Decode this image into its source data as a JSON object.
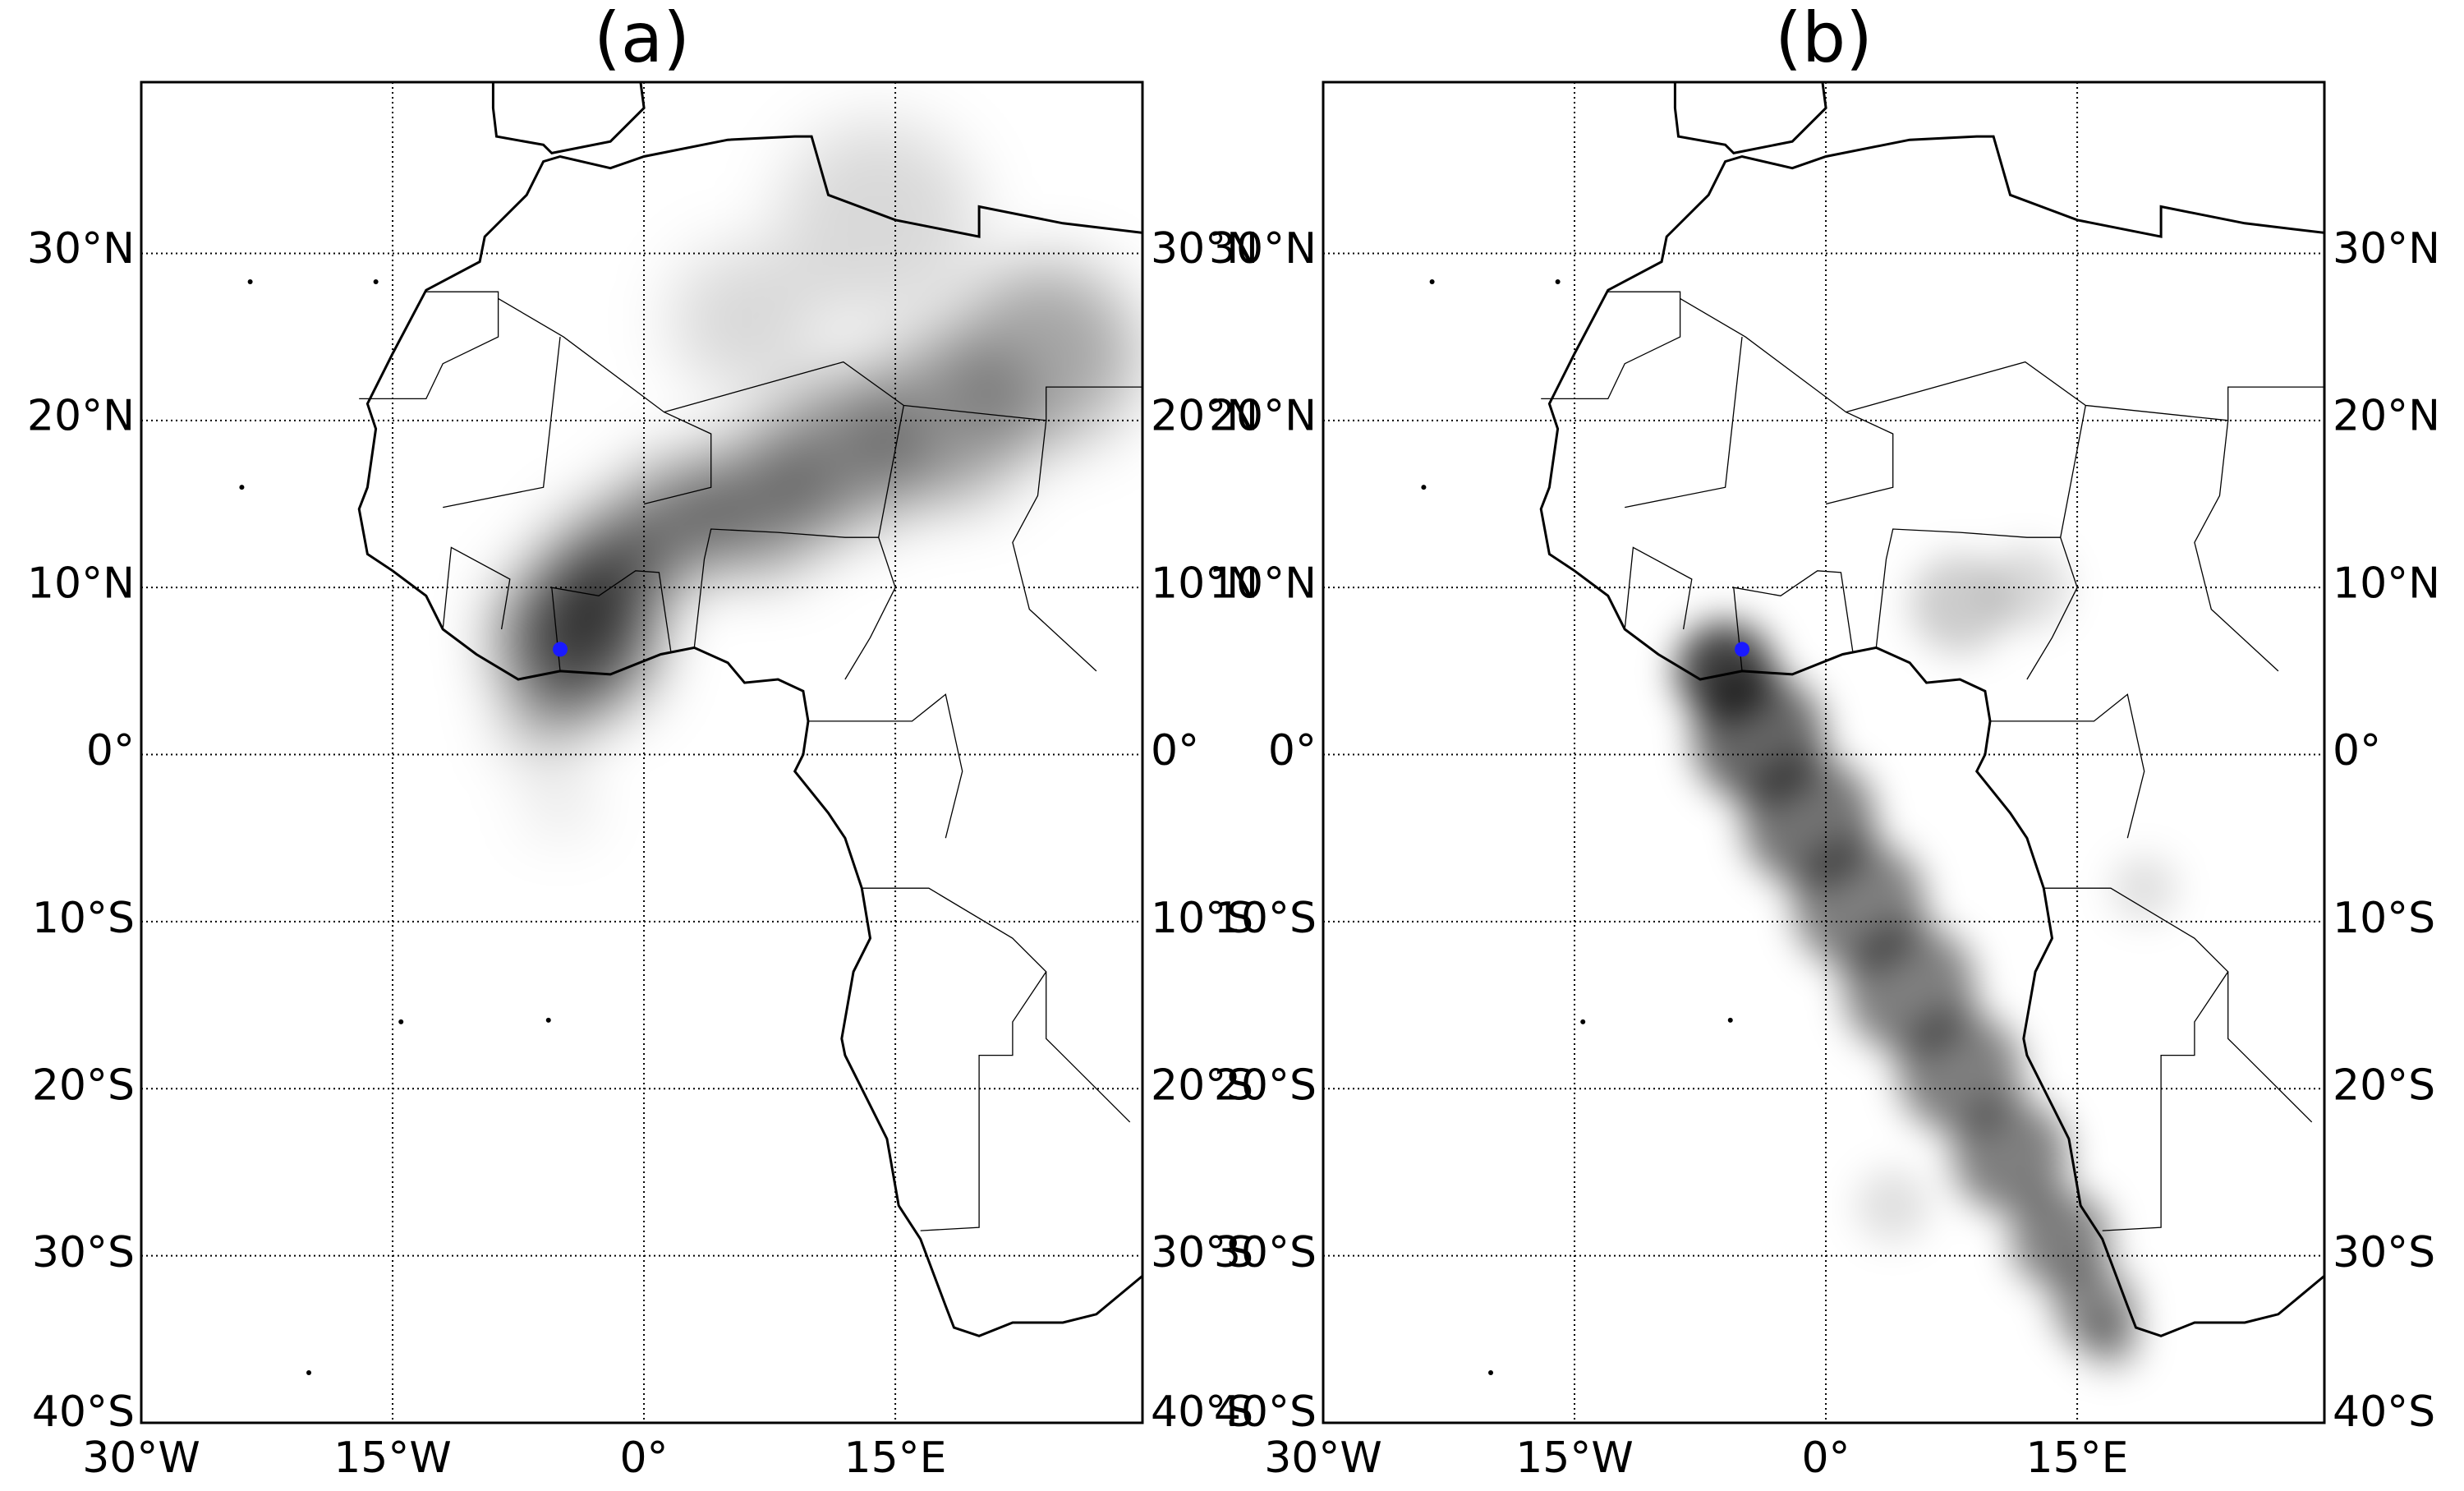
{
  "panels": [
    {
      "title": "(a)"
    },
    {
      "title": "(b)"
    }
  ],
  "lat_labels": [
    "30°N",
    "20°N",
    "10°N",
    "0°",
    "10°S",
    "20°S",
    "30°S",
    "40°S"
  ],
  "lon_labels": [
    "30°W",
    "15°W",
    "0°",
    "15°E"
  ]
}
